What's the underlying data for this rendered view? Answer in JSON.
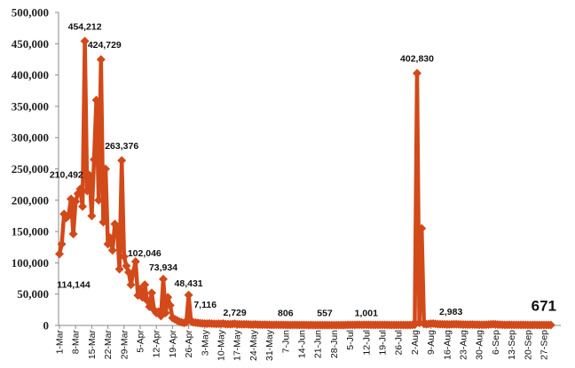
{
  "chart_data": {
    "type": "line",
    "title": "",
    "xlabel": "",
    "ylabel": "",
    "x_start": "1-Mar",
    "x_end": "30-Sep",
    "ylim": [
      0,
      500000
    ],
    "yticks": [
      "0",
      "50,000",
      "100,000",
      "150,000",
      "200,000",
      "250,000",
      "300,000",
      "350,000",
      "400,000",
      "450,000",
      "500,000"
    ],
    "xticks": [
      "1-Mar",
      "8-Mar",
      "15-Mar",
      "22-Mar",
      "29-Mar",
      "5-Apr",
      "12-Apr",
      "19-Apr",
      "26-Apr",
      "3-May",
      "10-May",
      "17-May",
      "24-May",
      "31-May",
      "7-Jun",
      "14-Jun",
      "21-Jun",
      "28-Jun",
      "5-Jul",
      "12-Jul",
      "19-Jul",
      "26-Jul",
      "2-Aug",
      "9-Aug",
      "16-Aug",
      "23-Aug",
      "30-Aug",
      "6-Sep",
      "13-Sep",
      "20-Sep",
      "27-Sep"
    ],
    "grid": false,
    "legend": "none",
    "color": "#D2491A",
    "marker": "diamond",
    "values": [
      114144,
      130000,
      178000,
      172000,
      176000,
      202000,
      146000,
      198000,
      210492,
      218000,
      190000,
      454212,
      215000,
      240000,
      175000,
      265000,
      360000,
      200000,
      424729,
      165000,
      250000,
      130000,
      140000,
      120000,
      162000,
      155000,
      90000,
      263376,
      110000,
      95000,
      85000,
      65000,
      85000,
      102046,
      48000,
      58000,
      45000,
      65000,
      40000,
      30000,
      52000,
      25000,
      20000,
      22000,
      15000,
      73934,
      20000,
      45000,
      32000,
      12000,
      10000,
      8000,
      6000,
      5000,
      4000,
      5000,
      48431,
      7116,
      5000,
      4500,
      4000,
      3500,
      3200,
      3000,
      2800,
      3100,
      2900,
      2600,
      2500,
      2700,
      2400,
      3000,
      2200,
      2100,
      2000,
      2300,
      2729,
      2000,
      1900,
      1800,
      1700,
      1900,
      1600,
      1500,
      1400,
      1600,
      1300,
      1200,
      1100,
      1300,
      1000,
      1100,
      950,
      900,
      1000,
      850,
      800,
      870,
      806,
      780,
      750,
      720,
      800,
      700,
      650,
      680,
      700,
      620,
      600,
      640,
      580,
      560,
      600,
      540,
      520,
      557,
      500,
      530,
      490,
      510,
      480,
      500,
      520,
      600,
      700,
      800,
      850,
      900,
      950,
      980,
      1000,
      970,
      1050,
      1001,
      990,
      960,
      940,
      900,
      880,
      860,
      840,
      820,
      800,
      780,
      760,
      740,
      720,
      700,
      680,
      660,
      650,
      640,
      700,
      900,
      1200,
      402830,
      4000,
      155000,
      2500,
      2000,
      2500,
      2800,
      2983,
      2500,
      2200,
      2000,
      1900,
      1800,
      1700,
      1600,
      1800,
      2000,
      1900,
      1700,
      1600,
      1500,
      1400,
      1300,
      1500,
      1400,
      1300,
      1200,
      1100,
      1000,
      1100,
      1200,
      1500,
      1800,
      2000,
      1700,
      1400,
      1200,
      1000,
      900,
      950,
      1000,
      900,
      850,
      800,
      900,
      950,
      850,
      800,
      750,
      700,
      750,
      800,
      750,
      700,
      680,
      690,
      700,
      680,
      671
    ],
    "annotations": [
      {
        "date": "1-Mar",
        "label": "114,144"
      },
      {
        "date": "9-Mar",
        "label": "210,492"
      },
      {
        "date": "12-Mar",
        "label": "454,212"
      },
      {
        "date": "19-Mar",
        "label": "424,729"
      },
      {
        "date": "28-Mar",
        "label": "263,376"
      },
      {
        "date": "3-Apr",
        "label": "102,046"
      },
      {
        "date": "15-Apr",
        "label": "73,934"
      },
      {
        "date": "26-Apr",
        "label": "48,431"
      },
      {
        "date": "27-Apr",
        "label": "7,116"
      },
      {
        "date": "16-May",
        "label": "2,729"
      },
      {
        "date": "7-Jun",
        "label": "806"
      },
      {
        "date": "24-Jun",
        "label": "557"
      },
      {
        "date": "12-Jul",
        "label": "1,001"
      },
      {
        "date": "3-Aug",
        "label": "402,830"
      },
      {
        "date": "10-Aug",
        "label": "2,983"
      },
      {
        "date": "30-Sep",
        "label": "671"
      }
    ]
  }
}
